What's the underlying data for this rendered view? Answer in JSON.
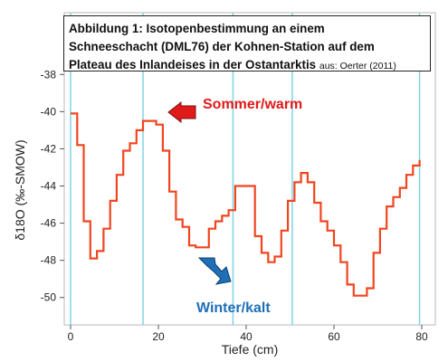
{
  "caption": {
    "line1": "Abbildung 1: Isotopenbestimmung an einem",
    "line2": "Schneeschacht (DML76) der Kohnen-Station auf dem",
    "line3": "Plateau des Inlandeises in der Ostantarktis",
    "source": "aus: Oerter (2011)"
  },
  "annotations": {
    "summer": "Sommer/warm",
    "winter": "Winter/kalt"
  },
  "colors": {
    "series": "#f0451f",
    "summer": "#e01a1a",
    "winter": "#1f6fb8",
    "gridlines": "#7fd4e4"
  },
  "chart_data": {
    "type": "line",
    "xlabel": "Tiefe (cm)",
    "ylabel": "δ18O (‰-SMOW)",
    "xlim": [
      0,
      80
    ],
    "ylim": [
      -50.5,
      -37.5
    ],
    "xticks": [
      0,
      20,
      40,
      60,
      80
    ],
    "yticks": [
      -38,
      -40,
      -42,
      -44,
      -46,
      -48,
      -50
    ],
    "vertical_gridlines_x": [
      0,
      16.5,
      37,
      50.5,
      79.5
    ],
    "series": [
      {
        "step": true,
        "x": [
          0,
          1.5,
          3,
          4.5,
          6,
          7.5,
          9,
          10.5,
          12,
          13.5,
          15,
          16.5,
          18,
          19.5,
          21,
          22.5,
          24,
          25.5,
          27,
          28.5,
          30,
          31.5,
          33,
          34.5,
          36,
          37.5,
          39,
          40.5,
          42,
          43.5,
          45,
          46.5,
          48,
          49.5,
          51,
          52.5,
          54,
          55.5,
          57,
          58.5,
          60,
          61.5,
          63,
          64.5,
          66,
          67.5,
          69,
          70.5,
          72,
          73.5,
          75,
          76.5,
          78,
          79.5
        ],
        "y": [
          -40.1,
          -41.8,
          -45.9,
          -47.9,
          -47.5,
          -46.3,
          -44.8,
          -43.4,
          -42.1,
          -41.7,
          -41.0,
          -40.5,
          -40.5,
          -40.7,
          -42.1,
          -44.3,
          -45.8,
          -46.2,
          -47.2,
          -47.3,
          -47.3,
          -46.3,
          -45.9,
          -45.6,
          -45.3,
          -44.0,
          -44.0,
          -44.0,
          -46.7,
          -47.6,
          -48.1,
          -47.8,
          -46.4,
          -44.8,
          -43.8,
          -43.3,
          -43.8,
          -44.9,
          -45.9,
          -46.4,
          -47.2,
          -48.1,
          -49.3,
          -49.9,
          -49.9,
          -49.5,
          -47.6,
          -46.3,
          -45.1,
          -44.6,
          -44.1,
          -43.4,
          -42.9,
          -42.6
        ]
      }
    ]
  }
}
